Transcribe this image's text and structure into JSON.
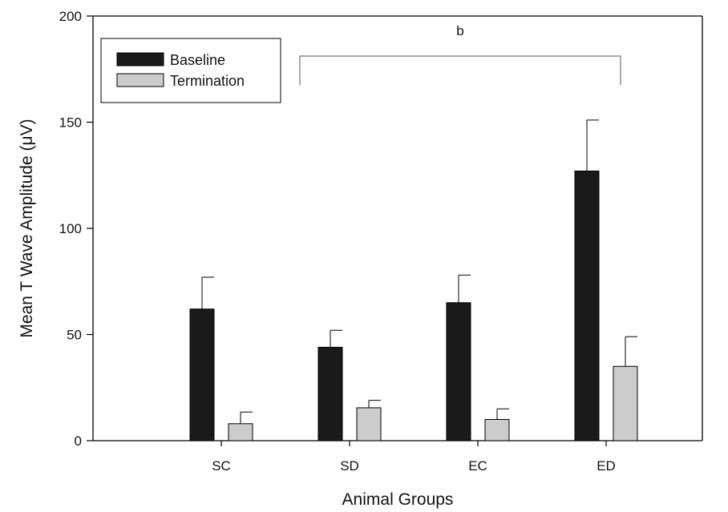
{
  "chart_data": {
    "type": "bar",
    "title": "",
    "xlabel": "Animal Groups",
    "ylabel": "Mean T Wave Amplitude (μV)",
    "ylim": [
      0,
      200
    ],
    "yticks": [
      0,
      50,
      100,
      150,
      200
    ],
    "categories": [
      "SC",
      "SD",
      "EC",
      "ED"
    ],
    "series": [
      {
        "name": "Baseline",
        "color": "#1a1a1a",
        "values": [
          62,
          44,
          65,
          127
        ],
        "errors": [
          15,
          8,
          13,
          24
        ]
      },
      {
        "name": "Termination",
        "color": "#cccccc",
        "values": [
          8,
          15.5,
          10,
          35
        ],
        "errors": [
          5.5,
          3.5,
          5,
          14
        ]
      }
    ],
    "annotation": {
      "text": "b",
      "from": "SD",
      "to": "ED"
    },
    "legend_position": "top-left"
  }
}
